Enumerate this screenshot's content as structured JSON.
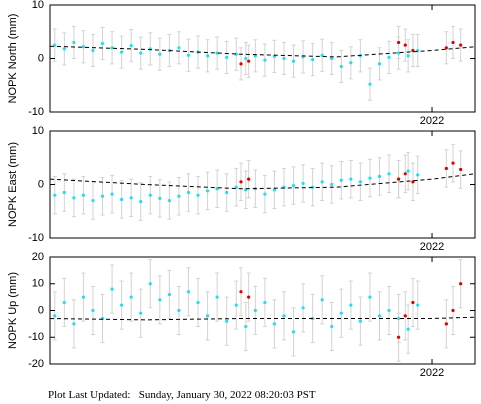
{
  "chart_data": [
    {
      "type": "scatter",
      "ylabel": "NOPK North (mm)",
      "xlim": [
        2018.0,
        2022.45
      ],
      "xticks": [
        2022
      ],
      "ylim": [
        -10,
        10
      ],
      "yticks": [
        -10,
        0,
        10
      ],
      "error_color": "#d3d3d3",
      "series": [
        {
          "color": "#1ee0f0",
          "error": 3,
          "x": [
            2018.05,
            2018.15,
            2018.25,
            2018.35,
            2018.45,
            2018.55,
            2018.65,
            2018.75,
            2018.85,
            2018.95,
            2019.05,
            2019.15,
            2019.25,
            2019.35,
            2019.45,
            2019.55,
            2019.65,
            2019.75,
            2019.85,
            2019.95,
            2020.05,
            2020.15,
            2020.25,
            2020.35,
            2020.45,
            2020.55,
            2020.65,
            2020.75,
            2020.85,
            2020.95,
            2021.05,
            2021.15,
            2021.25,
            2021.35,
            2021.45,
            2021.55,
            2021.65,
            2021.75,
            2021.85
          ],
          "values": [
            2.5,
            1.8,
            3.0,
            2.2,
            1.5,
            2.8,
            2.0,
            1.2,
            2.4,
            1.0,
            1.8,
            0.8,
            1.5,
            2.0,
            0.6,
            1.2,
            0.5,
            1.0,
            0.2,
            0.8,
            0.0,
            0.5,
            -0.3,
            0.4,
            0.0,
            -0.5,
            0.3,
            -0.2,
            0.6,
            0.0,
            -1.5,
            -0.8,
            0.5,
            -4.8,
            -1.0,
            0.2,
            1.0,
            0.5,
            1.5
          ]
        },
        {
          "color": "#e00000",
          "error": 3,
          "x": [
            2020.0,
            2020.08,
            2021.65,
            2021.72,
            2021.8,
            2022.15,
            2022.22,
            2022.3
          ],
          "values": [
            -1.0,
            -0.5,
            3.0,
            2.5,
            1.5,
            2.0,
            3.0,
            2.5
          ]
        },
        {
          "color": "#000000",
          "line": "dashed",
          "x": [
            2018.0,
            2019.0,
            2020.0,
            2021.0,
            2022.0,
            2022.45
          ],
          "values": [
            2.3,
            1.7,
            0.8,
            0.3,
            1.5,
            2.2
          ]
        }
      ]
    },
    {
      "type": "scatter",
      "ylabel": "NOPK East (mm)",
      "xlim": [
        2018.0,
        2022.45
      ],
      "xticks": [
        2022
      ],
      "ylim": [
        -10,
        10
      ],
      "yticks": [
        -10,
        0,
        10
      ],
      "error_color": "#d3d3d3",
      "series": [
        {
          "color": "#1ee0f0",
          "error": 3.5,
          "x": [
            2018.05,
            2018.15,
            2018.25,
            2018.35,
            2018.45,
            2018.55,
            2018.65,
            2018.75,
            2018.85,
            2018.95,
            2019.05,
            2019.15,
            2019.25,
            2019.35,
            2019.45,
            2019.55,
            2019.65,
            2019.75,
            2019.85,
            2019.95,
            2020.05,
            2020.15,
            2020.25,
            2020.35,
            2020.45,
            2020.55,
            2020.65,
            2020.75,
            2020.85,
            2020.95,
            2021.05,
            2021.15,
            2021.25,
            2021.35,
            2021.45,
            2021.55,
            2021.65,
            2021.75,
            2021.85
          ],
          "values": [
            -2.0,
            -1.5,
            -2.5,
            -2.0,
            -3.0,
            -2.2,
            -1.8,
            -2.8,
            -2.5,
            -3.2,
            -2.0,
            -2.6,
            -3.0,
            -2.2,
            -1.5,
            -2.0,
            -1.2,
            -0.8,
            -1.5,
            -0.5,
            -1.0,
            -0.8,
            -1.8,
            -1.0,
            -0.5,
            -0.2,
            0.2,
            -0.5,
            0.5,
            0.0,
            0.8,
            1.0,
            0.5,
            1.2,
            1.5,
            2.0,
            1.0,
            2.5,
            1.8
          ]
        },
        {
          "color": "#e00000",
          "error": 3.5,
          "x": [
            2020.0,
            2020.08,
            2021.65,
            2021.72,
            2021.8,
            2022.15,
            2022.22,
            2022.3
          ],
          "values": [
            0.5,
            1.0,
            1.0,
            2.0,
            0.5,
            3.0,
            4.0,
            2.8
          ]
        },
        {
          "color": "#000000",
          "line": "dashed",
          "x": [
            2018.0,
            2019.0,
            2020.0,
            2021.0,
            2022.0,
            2022.45
          ],
          "values": [
            1.0,
            0.0,
            -0.8,
            -0.5,
            1.0,
            2.0
          ]
        }
      ]
    },
    {
      "type": "scatter",
      "ylabel": "NOPK Up (mm)",
      "xlim": [
        2018.0,
        2022.45
      ],
      "xticks": [
        2022
      ],
      "ylim": [
        -20,
        20
      ],
      "yticks": [
        -20,
        -10,
        0,
        10,
        20
      ],
      "error_color": "#d3d3d3",
      "series": [
        {
          "color": "#1ee0f0",
          "error": 9,
          "x": [
            2018.05,
            2018.15,
            2018.25,
            2018.35,
            2018.45,
            2018.55,
            2018.65,
            2018.75,
            2018.85,
            2018.95,
            2019.05,
            2019.15,
            2019.25,
            2019.35,
            2019.45,
            2019.55,
            2019.65,
            2019.75,
            2019.85,
            2019.95,
            2020.05,
            2020.15,
            2020.25,
            2020.35,
            2020.45,
            2020.55,
            2020.65,
            2020.75,
            2020.85,
            2020.95,
            2021.05,
            2021.15,
            2021.25,
            2021.35,
            2021.45,
            2021.55,
            2021.65,
            2021.75,
            2021.85
          ],
          "values": [
            -2,
            3,
            -5,
            5,
            0,
            -3,
            8,
            2,
            5,
            -1,
            10,
            4,
            6,
            0,
            7,
            3,
            -2,
            5,
            -4,
            2,
            -6,
            0,
            3,
            -5,
            -2,
            -8,
            1,
            -3,
            4,
            -6,
            -1,
            2,
            -4,
            5,
            -2,
            0,
            -3,
            -7,
            2
          ]
        },
        {
          "color": "#e00000",
          "error": 9,
          "x": [
            2020.0,
            2020.08,
            2021.65,
            2021.72,
            2021.8,
            2022.15,
            2022.22,
            2022.3
          ],
          "values": [
            7,
            5,
            -10,
            -2,
            3,
            -5,
            0,
            10
          ]
        },
        {
          "color": "#000000",
          "line": "dashed",
          "x": [
            2018.0,
            2019.0,
            2020.0,
            2021.0,
            2022.0,
            2022.45
          ],
          "values": [
            -3,
            -3.5,
            -3,
            -3,
            -3,
            -2.5
          ]
        }
      ]
    }
  ],
  "footer": "Plot Last Updated:   Sunday, January 30, 2022 08:20:03 PST"
}
